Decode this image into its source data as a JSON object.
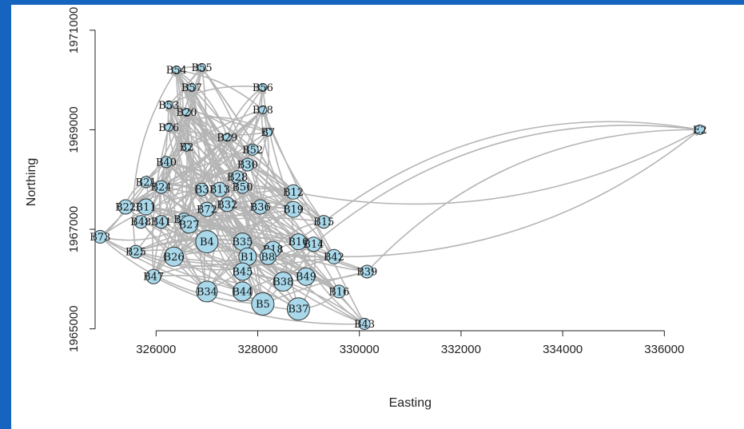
{
  "chart_data": {
    "type": "scatter",
    "title": "",
    "xlabel": "Easting",
    "ylabel": "Northing",
    "xlim": [
      324800,
      337300
    ],
    "ylim": [
      1964850,
      1971350
    ],
    "x_ticks": [
      326000,
      328000,
      330000,
      332000,
      334000,
      336000
    ],
    "y_ticks": [
      1965000,
      1967000,
      1969000,
      1971000
    ],
    "x_tick_labels": [
      "326000",
      "328000",
      "330000",
      "332000",
      "334000",
      "336000"
    ],
    "y_tick_labels": [
      "1965000",
      "1967000",
      "1969000",
      "1971000"
    ],
    "grid": false,
    "legend": "none",
    "colors": {
      "node_fill": "#a8d8ea",
      "node_stroke": "#333333",
      "edge": "#b5b5b5"
    },
    "nodes": [
      {
        "label": "B54",
        "x": 326400,
        "y": 1970200,
        "size": 5
      },
      {
        "label": "B55",
        "x": 326900,
        "y": 1970250,
        "size": 5
      },
      {
        "label": "B57",
        "x": 326700,
        "y": 1969850,
        "size": 5
      },
      {
        "label": "B56",
        "x": 328100,
        "y": 1969850,
        "size": 5
      },
      {
        "label": "B53",
        "x": 326250,
        "y": 1969500,
        "size": 5
      },
      {
        "label": "B20",
        "x": 326600,
        "y": 1969350,
        "size": 5
      },
      {
        "label": "B78",
        "x": 328100,
        "y": 1969400,
        "size": 5
      },
      {
        "label": "B76",
        "x": 326250,
        "y": 1969050,
        "size": 5
      },
      {
        "label": "B7",
        "x": 328200,
        "y": 1968950,
        "size": 5
      },
      {
        "label": "B29",
        "x": 327400,
        "y": 1968850,
        "size": 5
      },
      {
        "label": "B2",
        "x": 326600,
        "y": 1968650,
        "size": 5
      },
      {
        "label": "B52",
        "x": 327900,
        "y": 1968600,
        "size": 7
      },
      {
        "label": "B40",
        "x": 326200,
        "y": 1968350,
        "size": 7
      },
      {
        "label": "B30",
        "x": 327800,
        "y": 1968300,
        "size": 8
      },
      {
        "label": "B28",
        "x": 327600,
        "y": 1968050,
        "size": 8
      },
      {
        "label": "B21",
        "x": 325800,
        "y": 1967950,
        "size": 7
      },
      {
        "label": "B24",
        "x": 326100,
        "y": 1967850,
        "size": 8
      },
      {
        "label": "B3",
        "x": 326900,
        "y": 1967800,
        "size": 8
      },
      {
        "label": "B13",
        "x": 327250,
        "y": 1967800,
        "size": 9
      },
      {
        "label": "B50",
        "x": 327700,
        "y": 1967850,
        "size": 8
      },
      {
        "label": "B12",
        "x": 328700,
        "y": 1967750,
        "size": 9
      },
      {
        "label": "B22",
        "x": 325400,
        "y": 1967450,
        "size": 9
      },
      {
        "label": "B11",
        "x": 325800,
        "y": 1967450,
        "size": 10
      },
      {
        "label": "B32",
        "x": 327400,
        "y": 1967500,
        "size": 9
      },
      {
        "label": "B72",
        "x": 327000,
        "y": 1967400,
        "size": 9
      },
      {
        "label": "B36",
        "x": 328050,
        "y": 1967450,
        "size": 9
      },
      {
        "label": "B19",
        "x": 328700,
        "y": 1967400,
        "size": 10
      },
      {
        "label": "B23",
        "x": 326550,
        "y": 1967200,
        "size": 8
      },
      {
        "label": "B48",
        "x": 325700,
        "y": 1967150,
        "size": 8
      },
      {
        "label": "B41",
        "x": 326100,
        "y": 1967150,
        "size": 8
      },
      {
        "label": "B27",
        "x": 326650,
        "y": 1967100,
        "size": 11
      },
      {
        "label": "B15",
        "x": 329300,
        "y": 1967150,
        "size": 8
      },
      {
        "label": "B73",
        "x": 324900,
        "y": 1966850,
        "size": 8
      },
      {
        "label": "B4",
        "x": 327000,
        "y": 1966750,
        "size": 14
      },
      {
        "label": "B35",
        "x": 327700,
        "y": 1966750,
        "size": 11
      },
      {
        "label": "B10",
        "x": 328800,
        "y": 1966750,
        "size": 10
      },
      {
        "label": "B14",
        "x": 329100,
        "y": 1966700,
        "size": 9
      },
      {
        "label": "B18",
        "x": 328300,
        "y": 1966600,
        "size": 10
      },
      {
        "label": "B25",
        "x": 325600,
        "y": 1966550,
        "size": 8
      },
      {
        "label": "B26",
        "x": 326350,
        "y": 1966450,
        "size": 12
      },
      {
        "label": "B1",
        "x": 327800,
        "y": 1966450,
        "size": 11
      },
      {
        "label": "B8",
        "x": 328200,
        "y": 1966450,
        "size": 10
      },
      {
        "label": "B42",
        "x": 329500,
        "y": 1966450,
        "size": 9
      },
      {
        "label": "B39",
        "x": 330150,
        "y": 1966150,
        "size": 8
      },
      {
        "label": "B47",
        "x": 325950,
        "y": 1966050,
        "size": 9
      },
      {
        "label": "B45",
        "x": 327700,
        "y": 1966150,
        "size": 11
      },
      {
        "label": "B49",
        "x": 328950,
        "y": 1966050,
        "size": 11
      },
      {
        "label": "B38",
        "x": 328500,
        "y": 1965950,
        "size": 12
      },
      {
        "label": "B34",
        "x": 327000,
        "y": 1965750,
        "size": 13
      },
      {
        "label": "B44",
        "x": 327700,
        "y": 1965750,
        "size": 12
      },
      {
        "label": "B16",
        "x": 329600,
        "y": 1965750,
        "size": 8
      },
      {
        "label": "B5",
        "x": 328100,
        "y": 1965500,
        "size": 14
      },
      {
        "label": "B37",
        "x": 328800,
        "y": 1965400,
        "size": 14
      },
      {
        "label": "B43",
        "x": 330100,
        "y": 1965100,
        "size": 7
      },
      {
        "label": "E2",
        "x": 336700,
        "y": 1969000,
        "size": 6
      }
    ]
  }
}
